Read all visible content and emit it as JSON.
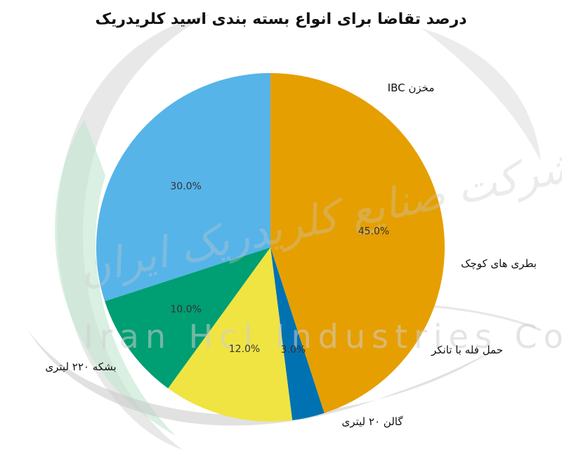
{
  "watermark": {
    "text_en": "Iran Hcl Industries Co",
    "text_fa": "شرکت صنایع کلریدریک ایران"
  },
  "chart_data": {
    "type": "pie",
    "title": "درصد تقاضا برای انواع بسته بندی اسید کلریدریک",
    "start_angle_deg": 90,
    "direction": "clockwise",
    "slices": [
      {
        "label": "مخزن IBC",
        "value": 45.0,
        "pct_text": "45.0%",
        "color": "#E69F00"
      },
      {
        "label": "بطری های کوچک",
        "value": 3.0,
        "pct_text": "3.0%",
        "color": "#0072B2"
      },
      {
        "label": "حمل فله با تانکر",
        "value": 12.0,
        "pct_text": "12.0%",
        "color": "#F0E442"
      },
      {
        "label": "گالن ۲۰ لیتری",
        "value": 10.0,
        "pct_text": "10.0%",
        "color": "#009E73"
      },
      {
        "label": "بشکه ۲۲۰ لیتری",
        "value": 30.0,
        "pct_text": "30.0%",
        "color": "#56B4E9"
      }
    ]
  }
}
